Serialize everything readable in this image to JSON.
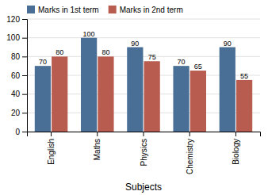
{
  "chart_data": {
    "type": "bar",
    "categories": [
      "English",
      "Maths",
      "Physics",
      "Chemistry",
      "Biology"
    ],
    "series": [
      {
        "name": "Marks in 1st term",
        "color": "#4a6f96",
        "values": [
          70,
          100,
          90,
          70,
          90
        ]
      },
      {
        "name": "Marks in 2nd term",
        "color": "#b85c50",
        "values": [
          80,
          80,
          75,
          65,
          55
        ]
      }
    ],
    "xlabel": "Subjects",
    "ylim": [
      0,
      120
    ],
    "yticks": [
      0,
      20,
      40,
      60,
      80,
      100,
      120
    ],
    "grid": true,
    "legend": "upper left",
    "data_labels": true
  }
}
